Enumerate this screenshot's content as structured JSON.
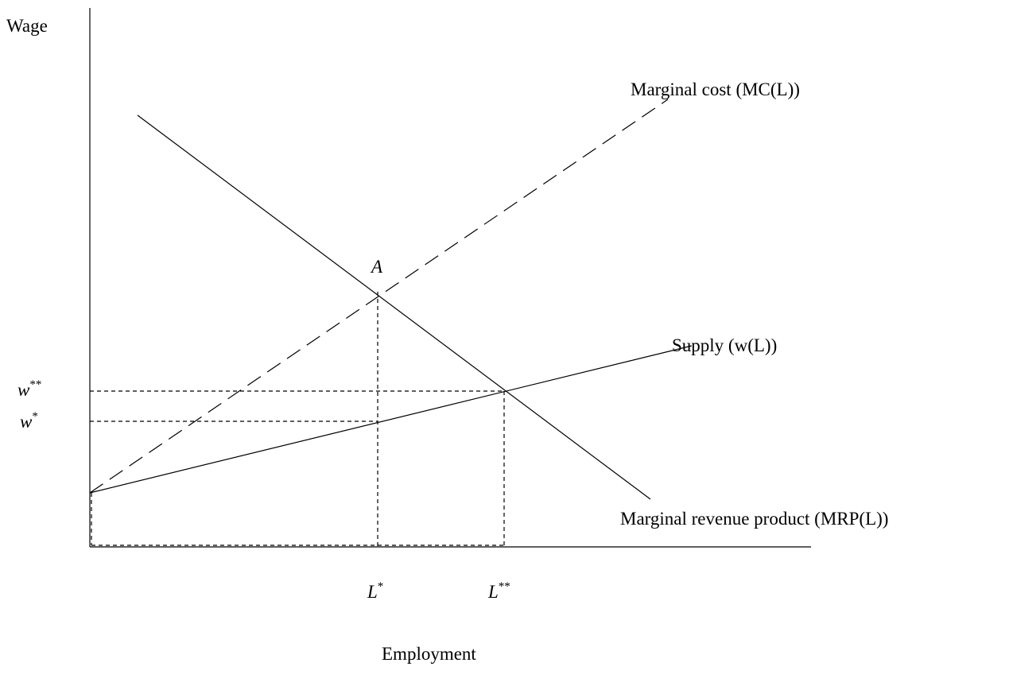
{
  "axes": {
    "y_label": "Wage",
    "x_label": "Employment"
  },
  "curves": {
    "marginal_cost": "Marginal cost (MC(L))",
    "supply": "Supply (w(L))",
    "mrp": "Marginal revenue product (MRP(L))"
  },
  "point": "A",
  "wage_levels": [
    {
      "base": "w",
      "sup": "**"
    },
    {
      "base": "w",
      "sup": "*"
    }
  ],
  "employment_levels": [
    {
      "base": "L",
      "sup": "*"
    },
    {
      "base": "L",
      "sup": "**"
    }
  ]
}
